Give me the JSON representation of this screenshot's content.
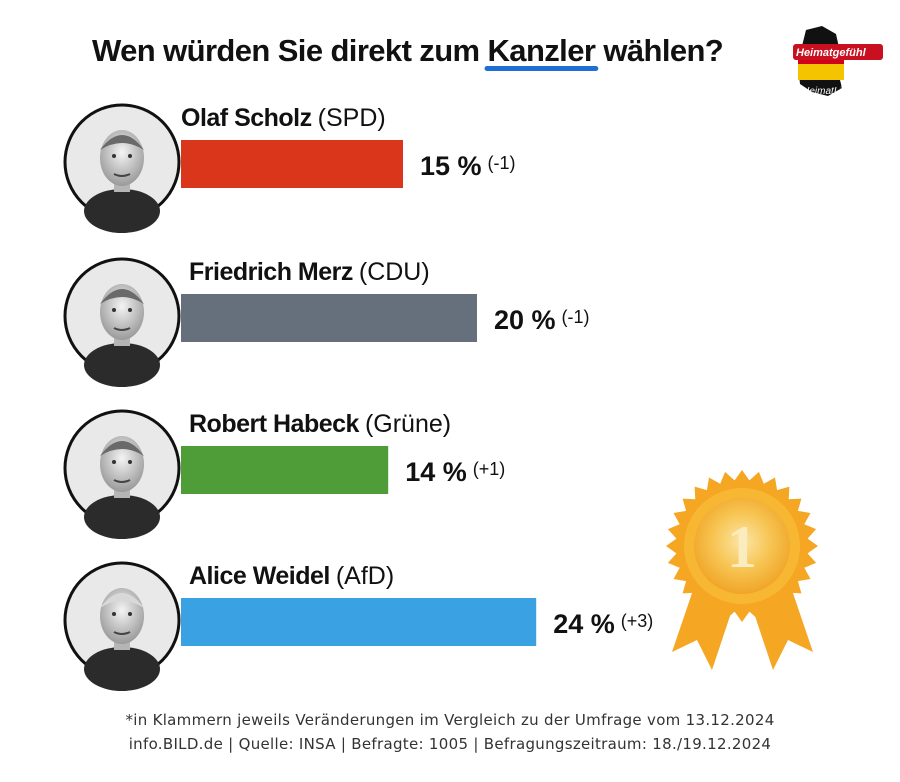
{
  "chart_data": {
    "type": "bar",
    "orientation": "horizontal",
    "title": {
      "before": "Wen würden Sie direkt zum ",
      "highlight": "Kanzler",
      "after": " wählen?"
    },
    "unit": "%",
    "xlim": [
      0,
      30
    ],
    "categories": [
      {
        "name": "Olaf Scholz",
        "party": "(SPD)",
        "value": 15,
        "change": "(-1)",
        "color": "#d9361c"
      },
      {
        "name": "Friedrich Merz",
        "party": "(CDU)",
        "value": 20,
        "change": "(-1)",
        "color": "#66707c"
      },
      {
        "name": "Robert Habeck",
        "party": "(Grüne)",
        "value": 14,
        "change": "(+1)",
        "color": "#4f9d39"
      },
      {
        "name": "Alice Weidel",
        "party": "(AfD)",
        "value": 24,
        "change": "(+3)",
        "color": "#3aa2e2"
      }
    ],
    "medal": {
      "label": "1",
      "color": "#f5a623"
    },
    "footnote": [
      "*in Klammern jeweils Veränderungen im Vergleich zu der Umfrage vom 13.12.2024",
      "info.BILD.de | Quelle: INSA | Befragte: 1005 | Befragungszeitraum: 18./19.12.2024"
    ]
  },
  "branding": {
    "logo_text": "Heimatgefühl",
    "handle": "@HeimatLiebeDE"
  },
  "colors": {
    "underline": "#1f6fd0",
    "text": "#111111"
  }
}
